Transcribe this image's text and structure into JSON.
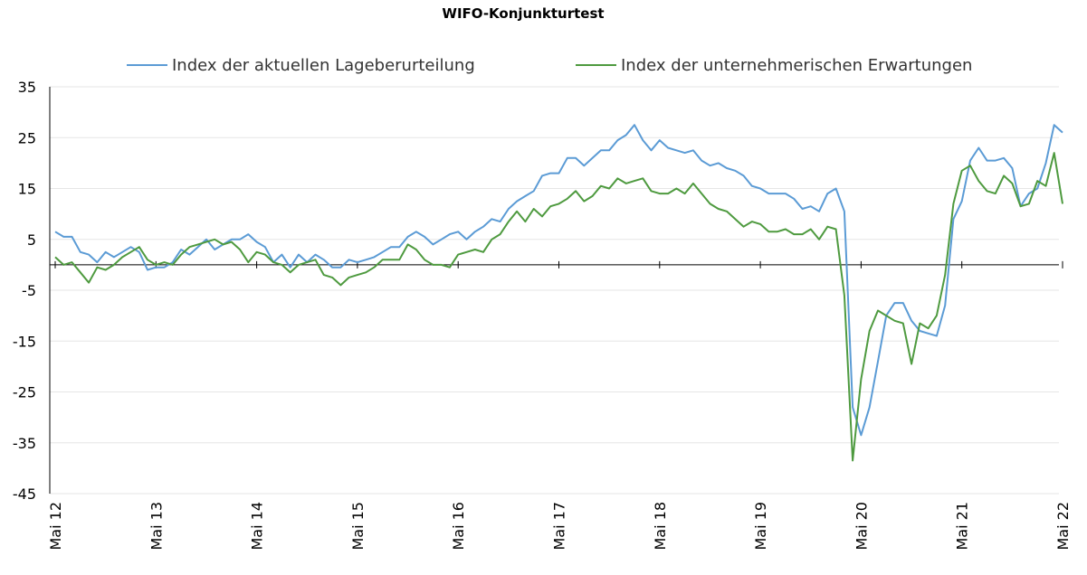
{
  "chart_data": {
    "type": "line",
    "title": "WIFO-Konjunkturtest",
    "xlabel": "",
    "ylabel": "",
    "ylim": [
      -45,
      35
    ],
    "yticks": [
      "35",
      "25",
      "15",
      "5",
      "-5",
      "-15",
      "-25",
      "-35",
      "-45"
    ],
    "xticks": [
      "Mai 12",
      "Mai 13",
      "Mai 14",
      "Mai 15",
      "Mai 16",
      "Mai 17",
      "Mai 18",
      "Mai 19",
      "Mai 20",
      "Mai 21",
      "Mai 22"
    ],
    "grid": true,
    "legend_position": "top",
    "series": [
      {
        "name": "Index der aktuellen Lageberurteilung",
        "color": "#5b9bd5",
        "values": [
          6.5,
          5.5,
          5.5,
          2.5,
          2.0,
          0.5,
          2.5,
          1.5,
          2.5,
          3.5,
          2.5,
          -1.0,
          -0.5,
          -0.5,
          0.5,
          3.0,
          2.0,
          3.5,
          5.0,
          3.0,
          4.0,
          5.0,
          5.0,
          6.0,
          4.5,
          3.5,
          0.5,
          2.0,
          -0.5,
          2.0,
          0.5,
          2.0,
          1.0,
          -0.5,
          -0.5,
          1.0,
          0.5,
          1.0,
          1.5,
          2.5,
          3.5,
          3.5,
          5.5,
          6.5,
          5.5,
          4.0,
          5.0,
          6.0,
          6.5,
          5.0,
          6.5,
          7.5,
          9.0,
          8.5,
          11.0,
          12.5,
          13.5,
          14.5,
          17.5,
          18.0,
          18.0,
          21.0,
          21.0,
          19.5,
          21.0,
          22.5,
          22.5,
          24.5,
          25.5,
          27.5,
          24.5,
          22.5,
          24.5,
          23.0,
          22.5,
          22.0,
          22.5,
          20.5,
          19.5,
          20.0,
          19.0,
          18.5,
          17.5,
          15.5,
          15.0,
          14.0,
          14.0,
          14.0,
          13.0,
          11.0,
          11.5,
          10.5,
          14.0,
          15.0,
          10.5,
          -28.0,
          -33.5,
          -28.0,
          -19.0,
          -10.0,
          -7.5,
          -7.5,
          -11.0,
          -13.0,
          -13.5,
          -14.0,
          -8.0,
          9.0,
          12.5,
          20.5,
          23.0,
          20.5,
          20.5,
          21.0,
          19.0,
          11.5,
          14.0,
          15.0,
          20.0,
          27.5,
          26.0
        ]
      },
      {
        "name": "Index der unternehmerischen Erwartungen",
        "color": "#4e9a3f",
        "values": [
          1.5,
          0.0,
          0.5,
          -1.5,
          -3.5,
          -0.5,
          -1.0,
          0.0,
          1.5,
          2.5,
          3.5,
          1.0,
          0.0,
          0.5,
          0.0,
          2.0,
          3.5,
          4.0,
          4.5,
          5.0,
          4.0,
          4.5,
          3.0,
          0.5,
          2.5,
          2.0,
          0.5,
          0.0,
          -1.5,
          0.0,
          0.5,
          1.0,
          -2.0,
          -2.5,
          -4.0,
          -2.5,
          -2.0,
          -1.5,
          -0.5,
          1.0,
          1.0,
          1.0,
          4.0,
          3.0,
          1.0,
          0.0,
          0.0,
          -0.5,
          2.0,
          2.5,
          3.0,
          2.5,
          5.0,
          6.0,
          8.5,
          10.5,
          8.5,
          11.0,
          9.5,
          11.5,
          12.0,
          13.0,
          14.5,
          12.5,
          13.5,
          15.5,
          15.0,
          17.0,
          16.0,
          16.5,
          17.0,
          14.5,
          14.0,
          14.0,
          15.0,
          14.0,
          16.0,
          14.0,
          12.0,
          11.0,
          10.5,
          9.0,
          7.5,
          8.5,
          8.0,
          6.5,
          6.5,
          7.0,
          6.0,
          6.0,
          7.0,
          5.0,
          7.5,
          7.0,
          -6.0,
          -38.5,
          -22.5,
          -13.0,
          -9.0,
          -10.0,
          -11.0,
          -11.5,
          -19.5,
          -11.5,
          -12.5,
          -10.0,
          -2.0,
          12.0,
          18.5,
          19.5,
          16.5,
          14.5,
          14.0,
          17.5,
          16.0,
          11.5,
          12.0,
          16.5,
          15.5,
          22.0,
          12.0
        ]
      }
    ]
  }
}
